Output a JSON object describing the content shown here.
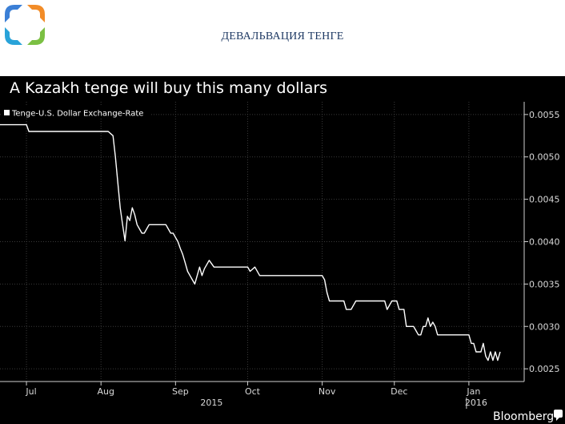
{
  "slide": {
    "title": "ДЕВАЛЬВАЦИЯ ТЕНГЕ",
    "logo_icon": "four-color-arrows-logo",
    "title_color": "#1f3a64"
  },
  "brand": {
    "name": "Bloomberg",
    "icon": "speech-bubble-icon"
  },
  "chart_data": {
    "type": "line",
    "title": "A Kazakh tenge will buy this many dollars",
    "series": [
      {
        "name": "Tenge-U.S. Dollar Exchange-Rate",
        "color": "#ffffff",
        "points": [
          [
            "2015-06-20",
            0.00538
          ],
          [
            "2015-07-01",
            0.00538
          ],
          [
            "2015-07-02",
            0.0053
          ],
          [
            "2015-07-20",
            0.0053
          ],
          [
            "2015-08-01",
            0.0053
          ],
          [
            "2015-08-04",
            0.0053
          ],
          [
            "2015-08-06",
            0.00525
          ],
          [
            "2015-08-07",
            0.005
          ],
          [
            "2015-08-08",
            0.0047
          ],
          [
            "2015-08-09",
            0.0044
          ],
          [
            "2015-08-10",
            0.0042
          ],
          [
            "2015-08-11",
            0.00401
          ],
          [
            "2015-08-12",
            0.0043
          ],
          [
            "2015-08-13",
            0.00425
          ],
          [
            "2015-08-14",
            0.0044
          ],
          [
            "2015-08-15",
            0.00432
          ],
          [
            "2015-08-16",
            0.0042
          ],
          [
            "2015-08-17",
            0.00415
          ],
          [
            "2015-08-18",
            0.0041
          ],
          [
            "2015-08-19",
            0.0041
          ],
          [
            "2015-08-20",
            0.00415
          ],
          [
            "2015-08-21",
            0.0042
          ],
          [
            "2015-08-25",
            0.0042
          ],
          [
            "2015-08-28",
            0.0042
          ],
          [
            "2015-08-29",
            0.00415
          ],
          [
            "2015-08-30",
            0.0041
          ],
          [
            "2015-08-31",
            0.0041
          ],
          [
            "2015-09-01",
            0.00405
          ],
          [
            "2015-09-02",
            0.004
          ],
          [
            "2015-09-03",
            0.00392
          ],
          [
            "2015-09-04",
            0.00385
          ],
          [
            "2015-09-05",
            0.00375
          ],
          [
            "2015-09-06",
            0.00365
          ],
          [
            "2015-09-07",
            0.0036
          ],
          [
            "2015-09-08",
            0.00355
          ],
          [
            "2015-09-09",
            0.0035
          ],
          [
            "2015-09-10",
            0.0036
          ],
          [
            "2015-09-11",
            0.0037
          ],
          [
            "2015-09-12",
            0.0036
          ],
          [
            "2015-09-13",
            0.00368
          ],
          [
            "2015-09-15",
            0.00378
          ],
          [
            "2015-09-17",
            0.0037
          ],
          [
            "2015-09-20",
            0.0037
          ],
          [
            "2015-09-25",
            0.0037
          ],
          [
            "2015-10-01",
            0.0037
          ],
          [
            "2015-10-02",
            0.00365
          ],
          [
            "2015-10-04",
            0.0037
          ],
          [
            "2015-10-06",
            0.0036
          ],
          [
            "2015-10-15",
            0.0036
          ],
          [
            "2015-10-25",
            0.0036
          ],
          [
            "2015-11-01",
            0.0036
          ],
          [
            "2015-11-02",
            0.00355
          ],
          [
            "2015-11-03",
            0.0034
          ],
          [
            "2015-11-04",
            0.0033
          ],
          [
            "2015-11-08",
            0.0033
          ],
          [
            "2015-11-10",
            0.0033
          ],
          [
            "2015-11-11",
            0.0032
          ],
          [
            "2015-11-13",
            0.0032
          ],
          [
            "2015-11-14",
            0.00325
          ],
          [
            "2015-11-15",
            0.0033
          ],
          [
            "2015-11-20",
            0.0033
          ],
          [
            "2015-11-27",
            0.0033
          ],
          [
            "2015-11-28",
            0.0032
          ],
          [
            "2015-11-30",
            0.0033
          ],
          [
            "2015-12-02",
            0.0033
          ],
          [
            "2015-12-03",
            0.0032
          ],
          [
            "2015-12-05",
            0.0032
          ],
          [
            "2015-12-06",
            0.003
          ],
          [
            "2015-12-09",
            0.003
          ],
          [
            "2015-12-10",
            0.00295
          ],
          [
            "2015-12-11",
            0.0029
          ],
          [
            "2015-12-12",
            0.0029
          ],
          [
            "2015-12-13",
            0.003
          ],
          [
            "2015-12-14",
            0.003
          ],
          [
            "2015-12-15",
            0.0031
          ],
          [
            "2015-12-16",
            0.003
          ],
          [
            "2015-12-17",
            0.00305
          ],
          [
            "2015-12-18",
            0.003
          ],
          [
            "2015-12-19",
            0.0029
          ],
          [
            "2015-12-25",
            0.0029
          ],
          [
            "2015-12-31",
            0.0029
          ],
          [
            "2016-01-01",
            0.0029
          ],
          [
            "2016-01-02",
            0.0028
          ],
          [
            "2016-01-03",
            0.0028
          ],
          [
            "2016-01-04",
            0.0027
          ],
          [
            "2016-01-06",
            0.0027
          ],
          [
            "2016-01-07",
            0.0028
          ],
          [
            "2016-01-08",
            0.00265
          ],
          [
            "2016-01-09",
            0.0026
          ],
          [
            "2016-01-10",
            0.0027
          ],
          [
            "2016-01-11",
            0.0026
          ],
          [
            "2016-01-12",
            0.0027
          ],
          [
            "2016-01-13",
            0.0026
          ],
          [
            "2016-01-14",
            0.0027
          ]
        ]
      }
    ],
    "xlim": [
      "2015-06-20",
      "2016-01-24"
    ],
    "ylim": [
      0.00235,
      0.00565
    ],
    "y_ticks": [
      {
        "value": 0.0055,
        "label": "0.0055"
      },
      {
        "value": 0.005,
        "label": "0.0050"
      },
      {
        "value": 0.0045,
        "label": "0.0045"
      },
      {
        "value": 0.004,
        "label": "0.0040"
      },
      {
        "value": 0.0035,
        "label": "0.0035"
      },
      {
        "value": 0.003,
        "label": "0.0030"
      },
      {
        "value": 0.0025,
        "label": "0.0025"
      }
    ],
    "x_ticks": [
      {
        "date": "2015-07-01",
        "label": "Jul"
      },
      {
        "date": "2015-08-01",
        "label": "Aug"
      },
      {
        "date": "2015-09-01",
        "label": "Sep"
      },
      {
        "date": "2015-10-01",
        "label": "Oct"
      },
      {
        "date": "2015-11-01",
        "label": "Nov"
      },
      {
        "date": "2015-12-01",
        "label": "Dec"
      },
      {
        "date": "2016-01-01",
        "label": "Jan"
      }
    ],
    "x_year_labels": [
      {
        "date": "2015-09-16",
        "label": "2015"
      },
      {
        "date": "2016-01-04",
        "label": "2016"
      }
    ],
    "year_divider": "2015-12-31",
    "grid": true,
    "legend": "top-left",
    "background": "#000000",
    "grid_color": "#3a3a3a"
  }
}
